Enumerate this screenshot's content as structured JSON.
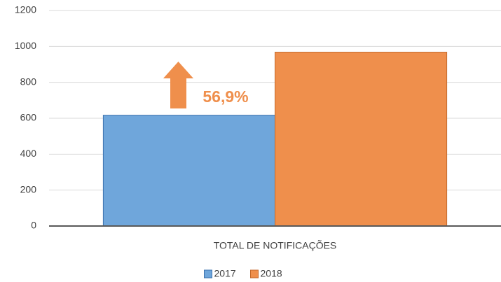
{
  "chart_data": {
    "type": "bar",
    "categories": [
      "TOTAL DE NOTIFICAÇÕES"
    ],
    "series": [
      {
        "name": "2017",
        "color": "#6fa6db",
        "values": [
          617
        ]
      },
      {
        "name": "2018",
        "color": "#ef8f4c",
        "values": [
          968
        ]
      }
    ],
    "annotation": "56,9%",
    "ylim": [
      0,
      1200
    ],
    "yticks": [
      0,
      200,
      400,
      600,
      800,
      1000,
      1200
    ],
    "grid": true,
    "legend": "bottom"
  }
}
